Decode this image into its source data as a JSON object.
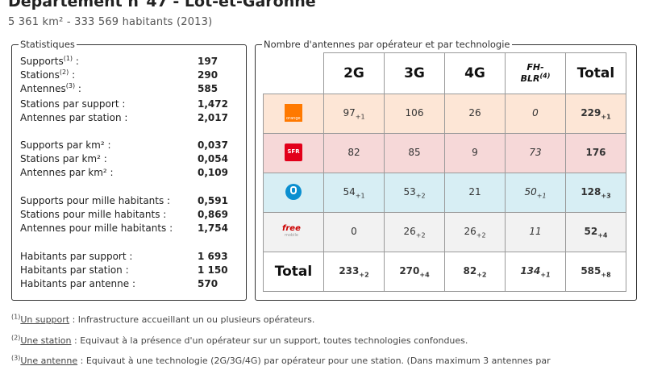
{
  "header": {
    "title": "Département n°47 - Lot-et-Garonne",
    "subtitle": "5 361 km² - 333 569 habitants (2013)"
  },
  "stats": {
    "legend": "Statistiques",
    "rows": [
      {
        "label": "Supports",
        "sup": "(1)",
        "suffix": " :",
        "value": "197"
      },
      {
        "label": "Stations",
        "sup": "(2)",
        "suffix": " :",
        "value": "290"
      },
      {
        "label": "Antennes",
        "sup": "(3)",
        "suffix": " :",
        "value": "585"
      },
      {
        "label": "Stations par support :",
        "sup": "",
        "suffix": "",
        "value": "1,472"
      },
      {
        "label": "Antennes par station :",
        "sup": "",
        "suffix": "",
        "value": "2,017"
      },
      {
        "label": "Supports par km² :",
        "sup": "",
        "suffix": "",
        "value": "0,037"
      },
      {
        "label": "Stations par km² :",
        "sup": "",
        "suffix": "",
        "value": "0,054"
      },
      {
        "label": "Antennes par km² :",
        "sup": "",
        "suffix": "",
        "value": "0,109"
      },
      {
        "label": "Supports pour mille habitants :",
        "sup": "",
        "suffix": "",
        "value": "0,591"
      },
      {
        "label": "Stations pour mille habitants :",
        "sup": "",
        "suffix": "",
        "value": "0,869"
      },
      {
        "label": "Antennes pour mille habitants :",
        "sup": "",
        "suffix": "",
        "value": "1,754"
      },
      {
        "label": "Habitants par support :",
        "sup": "",
        "suffix": "",
        "value": "1 693"
      },
      {
        "label": "Habitants par station :",
        "sup": "",
        "suffix": "",
        "value": "1 150"
      },
      {
        "label": "Habitants par antenne :",
        "sup": "",
        "suffix": "",
        "value": "570"
      }
    ]
  },
  "antennas": {
    "legend": "Nombre d'antennes par opérateur et par technologie",
    "headers": {
      "c2g": "2G",
      "c3g": "3G",
      "c4g": "4G",
      "fh": "FH-",
      "blr": "BLR",
      "blr_sup": "(4)",
      "total": "Total"
    },
    "operators": [
      {
        "logo_text": "orange",
        "c2g": "97",
        "c2g_sub": "+1",
        "c3g": "106",
        "c3g_sub": "",
        "c4g": "26",
        "c4g_sub": "",
        "fh": "0",
        "fh_sub": "",
        "total": "229",
        "total_sub": "+1"
      },
      {
        "logo_text": "SFR",
        "c2g": "82",
        "c2g_sub": "",
        "c3g": "85",
        "c3g_sub": "",
        "c4g": "9",
        "c4g_sub": "",
        "fh": "73",
        "fh_sub": "",
        "total": "176",
        "total_sub": ""
      },
      {
        "logo_text": "",
        "c2g": "54",
        "c2g_sub": "+1",
        "c3g": "53",
        "c3g_sub": "+2",
        "c4g": "21",
        "c4g_sub": "",
        "fh": "50",
        "fh_sub": "+1",
        "total": "128",
        "total_sub": "+3"
      },
      {
        "logo_text": "free",
        "logo_sub": "mobile",
        "c2g": "0",
        "c2g_sub": "",
        "c3g": "26",
        "c3g_sub": "+2",
        "c4g": "26",
        "c4g_sub": "+2",
        "fh": "11",
        "fh_sub": "",
        "total": "52",
        "total_sub": "+4"
      }
    ],
    "totals": {
      "label": "Total",
      "c2g": "233",
      "c2g_sub": "+2",
      "c3g": "270",
      "c3g_sub": "+4",
      "c4g": "82",
      "c4g_sub": "+2",
      "fh": "134",
      "fh_sub": "+1",
      "total": "585",
      "total_sub": "+8"
    }
  },
  "footnotes": [
    {
      "sup": "(1)",
      "term": "Un support",
      "text": " : Infrastructure accueillant un ou plusieurs opérateurs."
    },
    {
      "sup": "(2)",
      "term": "Une station",
      "text": " : Equivaut à la présence d'un opérateur sur un support, toutes technologies confondues."
    },
    {
      "sup": "(3)",
      "term": "Une antenne",
      "text": " : Equivaut à une technologie (2G/3G/4G) par opérateur pour une station. (Dans maximum 3 antennes par"
    }
  ],
  "colors": {
    "orange_row": "#fde6d6",
    "sfr_row": "#f6d8d8",
    "bouygues_row": "#d7eef4",
    "free_row": "#f2f2f2",
    "orange_brand": "#ff7900",
    "sfr_brand": "#e2001a",
    "bouygues_brand": "#0b8fd0",
    "free_brand": "#cc0000"
  },
  "icons": {
    "orange": "orange-logo-icon",
    "sfr": "sfr-logo-icon",
    "bouygues": "bouygues-logo-icon",
    "free": "free-mobile-logo-icon"
  }
}
